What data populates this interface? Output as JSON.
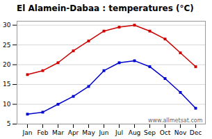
{
  "chart_data": {
    "type": "line",
    "title": "El Alamein-Dabaa : temperatures (°C)",
    "categories": [
      "Jan",
      "Feb",
      "Mar",
      "Apr",
      "May",
      "Jun",
      "Jul",
      "Aug",
      "Sep",
      "Oct",
      "Nov",
      "Dec"
    ],
    "series": [
      {
        "color": "#cc0000",
        "values": [
          17.5,
          18.5,
          20.5,
          23.5,
          26.0,
          28.5,
          29.5,
          30.0,
          28.5,
          26.5,
          23.0,
          19.5
        ]
      },
      {
        "color": "#0000cc",
        "values": [
          7.5,
          8.0,
          10.0,
          12.0,
          14.5,
          18.5,
          20.5,
          21.0,
          19.5,
          16.5,
          13.0,
          9.0
        ]
      }
    ],
    "ylim": [
      5,
      31
    ],
    "yticks": [
      5,
      10,
      15,
      20,
      25,
      30
    ],
    "grid": true,
    "marker": "square",
    "annotations": [
      "www.allmetsat.com"
    ]
  }
}
